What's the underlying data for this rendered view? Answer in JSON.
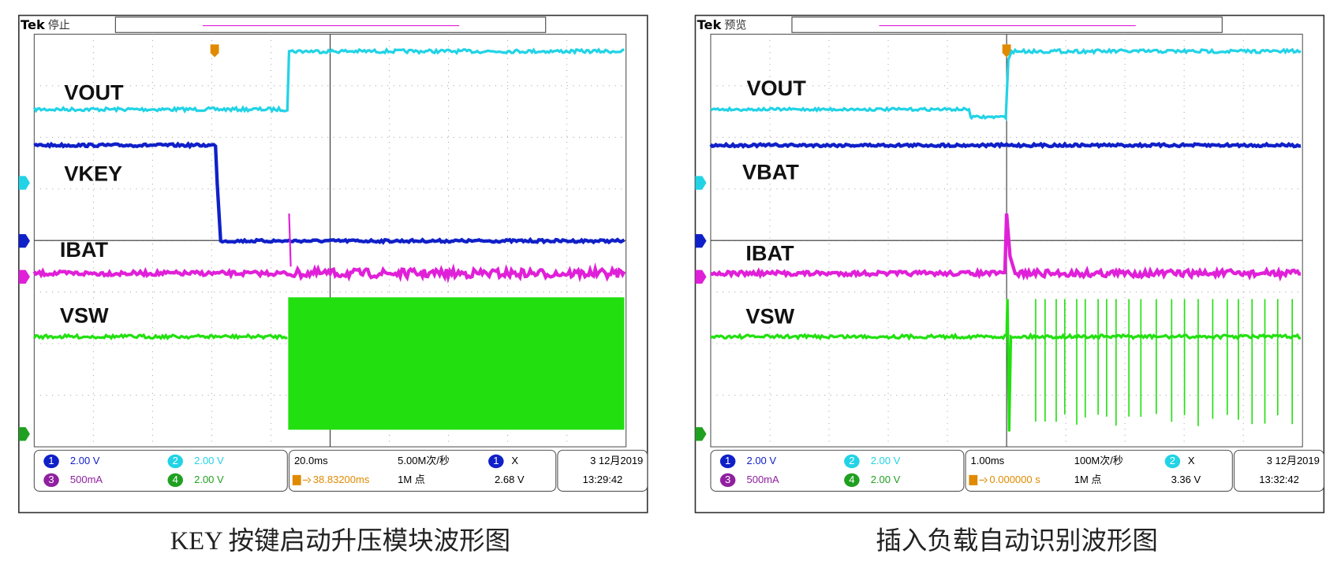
{
  "panels": [
    {
      "brand": "Tek",
      "status": "停止",
      "labels": [
        "VOUT",
        "VKEY",
        "IBAT",
        "VSW"
      ],
      "channels": [
        {
          "num": "1",
          "scale": "2.00 V"
        },
        {
          "num": "2",
          "scale": "2.00 V"
        },
        {
          "num": "3",
          "scale": "500mA"
        },
        {
          "num": "4",
          "scale": "2.00 V"
        }
      ],
      "timebase": "20.0ms",
      "sample_rate": "5.00M次/秒",
      "trigger_pos": "38.83200ms",
      "record": "1M 点",
      "trigger_ch": "1",
      "trigger_mode": "X",
      "trigger_level": "2.68 V",
      "date": "3 12月2019",
      "time": "13:29:42",
      "caption": "KEY 按键启动升压模块波形图"
    },
    {
      "brand": "Tek",
      "status": "预览",
      "labels": [
        "VOUT",
        "VBAT",
        "IBAT",
        "VSW"
      ],
      "channels": [
        {
          "num": "1",
          "scale": "2.00 V"
        },
        {
          "num": "2",
          "scale": "2.00 V"
        },
        {
          "num": "3",
          "scale": "500mA"
        },
        {
          "num": "4",
          "scale": "2.00 V"
        }
      ],
      "timebase": "1.00ms",
      "sample_rate": "100M次/秒",
      "trigger_pos": "0.000000 s",
      "record": "1M 点",
      "trigger_ch": "2",
      "trigger_mode": "X",
      "trigger_level": "3.36 V",
      "date": "3 12月2019",
      "time": "13:32:42",
      "caption": "插入负载自动识别波形图"
    }
  ]
}
